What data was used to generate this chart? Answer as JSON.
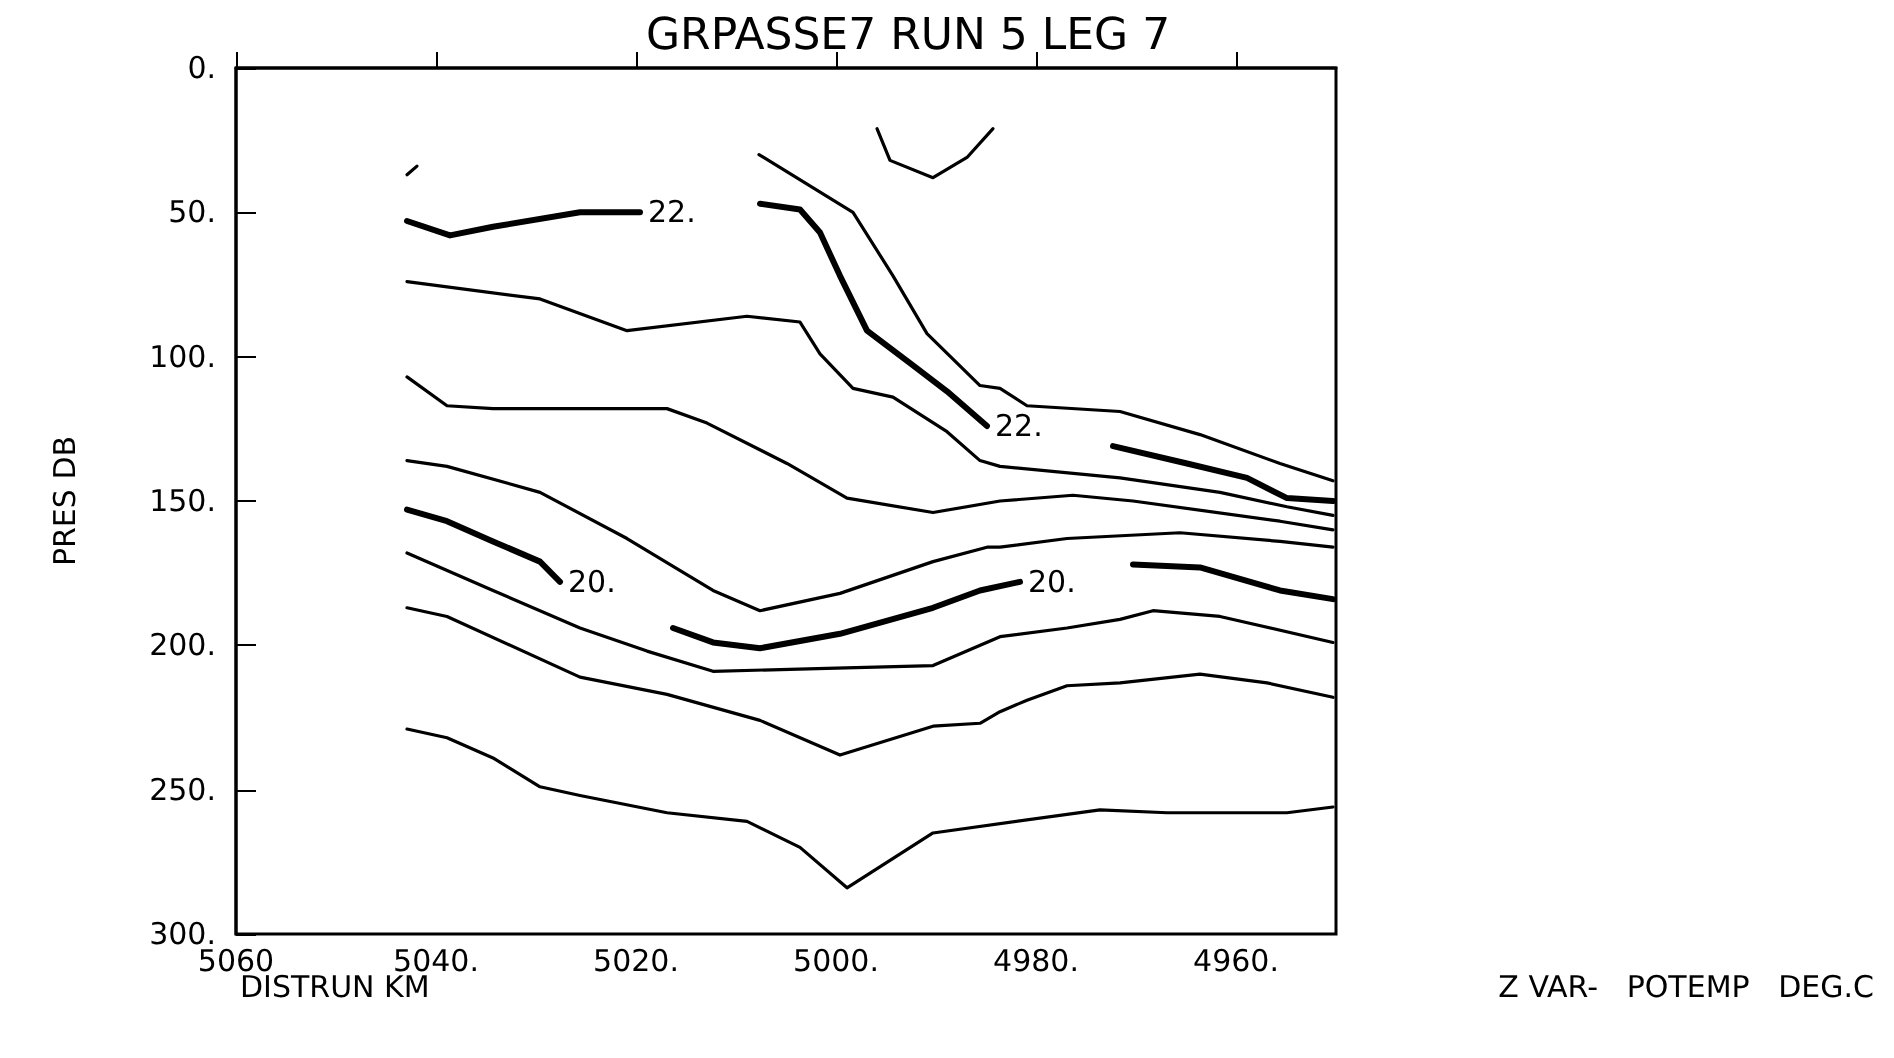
{
  "chart_data": {
    "type": "line",
    "title": "GRPASSE7 RUN 5 LEG 7",
    "xlabel": "DISTRUN KM",
    "ylabel": "PRES DB",
    "marker": "none",
    "line_style": "solid",
    "grid": false,
    "xlim": [
      5060,
      4950
    ],
    "xticks": [
      {
        "value": 5060,
        "label": "5060"
      },
      {
        "value": 5040,
        "label": "5040."
      },
      {
        "value": 5020,
        "label": "5020."
      },
      {
        "value": 5000,
        "label": "5000."
      },
      {
        "value": 4980,
        "label": "4980."
      },
      {
        "value": 4960,
        "label": "4960."
      }
    ],
    "ylim": [
      300,
      0
    ],
    "yticks": [
      {
        "value": 0,
        "label": "0."
      },
      {
        "value": 50,
        "label": "50."
      },
      {
        "value": 100,
        "label": "100."
      },
      {
        "value": 150,
        "label": "150."
      },
      {
        "value": 200,
        "label": "200."
      },
      {
        "value": 250,
        "label": "250."
      },
      {
        "value": 300,
        "label": "300."
      }
    ],
    "annotations": [
      "Z VAR-   POTEMP   DEG.C"
    ],
    "series": [
      {
        "color": "#000000",
        "x": [
          5042.9,
          5041.9
        ],
        "values": [
          37,
          34
        ]
      },
      {
        "name": "22.",
        "color": "#000000",
        "x": [
          5042.9,
          5038.6,
          5034.3,
          5025.6,
          5019.6,
          5013.6,
          5007.6,
          5003.6,
          5001.6,
          4999.6,
          4996.9,
          4992.3,
          4988.9,
          4984.9,
          4978.6,
          4972.3,
          4964.9,
          4958.9,
          4954.9,
          4950.3
        ],
        "values": [
          53,
          58,
          55,
          50,
          50,
          null,
          47,
          49,
          57,
          72,
          91,
          103,
          112,
          124,
          null,
          131,
          137,
          142,
          149,
          150
        ]
      },
      {
        "color": "#000000",
        "x": [
          4995.9,
          4994.6,
          4990.3,
          4986.9,
          4984.3
        ],
        "values": [
          21,
          32,
          38,
          31,
          21
        ]
      },
      {
        "color": "#000000",
        "x": [
          5007.7,
          4998.3,
          4994.3,
          4990.9,
          4985.6,
          4983.6,
          4980.9,
          4971.6,
          4963.6,
          4955.6,
          4950.3
        ],
        "values": [
          30,
          50,
          72,
          92,
          110,
          111,
          117,
          119,
          127,
          137,
          143
        ]
      },
      {
        "color": "#000000",
        "x": [
          5042.9,
          5029.6,
          5020.9,
          5008.9,
          5003.6,
          5001.6,
          4998.3,
          4994.3,
          4988.9,
          4985.6,
          4983.6,
          4971.6,
          4961.6,
          4954.9,
          4950.3
        ],
        "values": [
          74,
          80,
          91,
          86,
          88,
          99,
          111,
          114,
          126,
          136,
          138,
          142,
          147,
          152,
          155
        ]
      },
      {
        "color": "#000000",
        "x": [
          5042.9,
          5038.9,
          5034.3,
          5016.9,
          5012.9,
          5004.9,
          4998.9,
          4990.3,
          4983.6,
          4976.3,
          4970.3,
          4955.6,
          4950.3
        ],
        "values": [
          107,
          117,
          118,
          118,
          123,
          137,
          149,
          154,
          150,
          148,
          150,
          157,
          160
        ]
      },
      {
        "color": "#000000",
        "x": [
          5042.9,
          5038.9,
          5029.6,
          5020.9,
          5012.3,
          5007.6,
          4999.6,
          4990.3,
          4984.9,
          4983.6,
          4976.9,
          4965.6,
          4955.6,
          4950.3
        ],
        "values": [
          136,
          138,
          147,
          163,
          181,
          188,
          182,
          171,
          166,
          166,
          163,
          161,
          164,
          166
        ]
      },
      {
        "name": "20.",
        "color": "#000000",
        "x": [
          5042.9,
          5038.9,
          5034.3,
          5029.6,
          5027.6,
          5022.9,
          5016.3,
          5012.3,
          5007.6,
          4999.6,
          4990.3,
          4985.6,
          4981.6,
          4976.9,
          4970.3,
          4963.6,
          4955.6,
          4950.3
        ],
        "values": [
          153,
          157,
          164,
          171,
          178,
          null,
          194,
          199,
          201,
          196,
          187,
          181,
          178,
          null,
          172,
          173,
          181,
          184
        ]
      },
      {
        "color": "#000000",
        "x": [
          5042.9,
          5034.3,
          5025.6,
          5018.9,
          5012.3,
          5000.9,
          4990.3,
          4983.6,
          4976.9,
          4971.6,
          4968.3,
          4961.6,
          4950.3
        ],
        "values": [
          168,
          181,
          194,
          202,
          209,
          208,
          207,
          197,
          194,
          191,
          188,
          190,
          199
        ]
      },
      {
        "color": "#000000",
        "x": [
          5042.9,
          5038.9,
          5025.6,
          5016.9,
          5007.6,
          4999.6,
          4990.3,
          4985.6,
          4983.6,
          4980.9,
          4976.9,
          4971.6,
          4963.6,
          4956.9,
          4950.3
        ],
        "values": [
          187,
          190,
          211,
          217,
          226,
          238,
          228,
          227,
          223,
          219,
          214,
          213,
          210,
          213,
          218
        ]
      },
      {
        "color": "#000000",
        "x": [
          5042.9,
          5038.9,
          5034.3,
          5029.6,
          5025.6,
          5016.9,
          5008.9,
          5003.6,
          4998.9,
          4990.3,
          4973.6,
          4966.9,
          4954.9,
          4950.3
        ],
        "values": [
          229,
          232,
          239,
          249,
          252,
          258,
          261,
          270,
          284,
          265,
          257,
          258,
          258,
          256
        ]
      }
    ]
  }
}
